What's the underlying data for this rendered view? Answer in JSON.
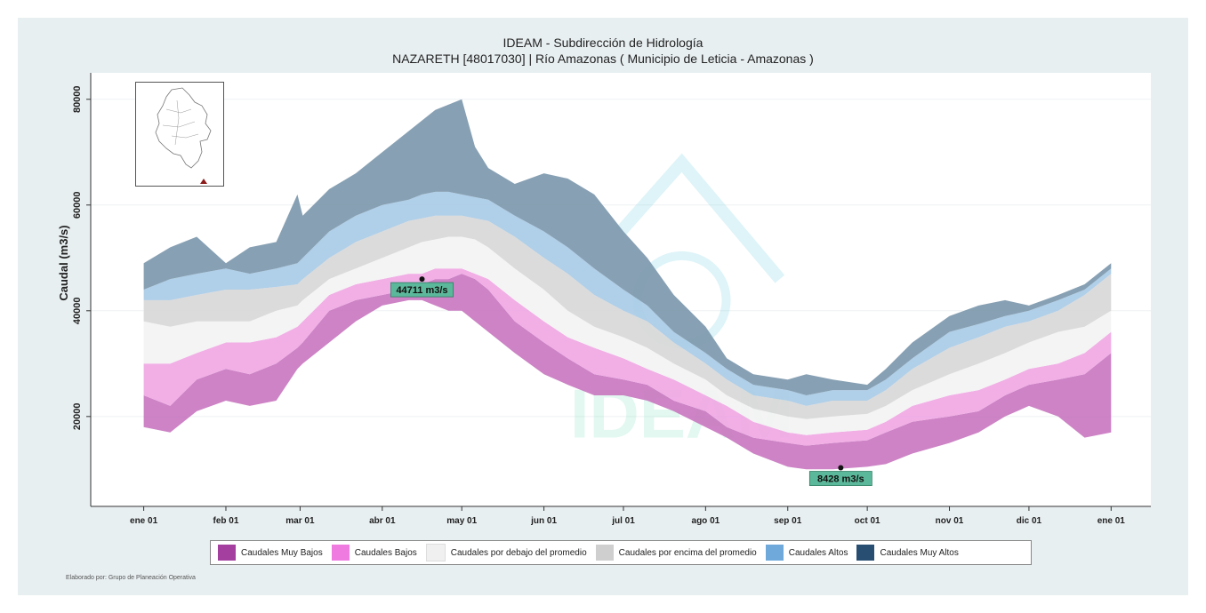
{
  "header": {
    "title": "IDEAM - Subdirección de Hidrología",
    "subtitle": "NAZARETH [48017030]  | Río Amazonas ( Municipio de Leticia - Amazonas )"
  },
  "credit": "Elaborado por: Grupo de Planeación Operativa",
  "watermark": "IDEAM",
  "chart_data": {
    "type": "area",
    "ylabel": "Caudal (m3/s)",
    "xlabel": "",
    "ylim": [
      3000,
      85000
    ],
    "xlim": [
      -20,
      380
    ],
    "y_ticks": [
      20000,
      40000,
      60000,
      80000
    ],
    "x_ticks": [
      {
        "label": "ene 01",
        "day": 0
      },
      {
        "label": "feb 01",
        "day": 31
      },
      {
        "label": "mar 01",
        "day": 59
      },
      {
        "label": "abr 01",
        "day": 90
      },
      {
        "label": "may 01",
        "day": 120
      },
      {
        "label": "jun 01",
        "day": 151
      },
      {
        "label": "jul 01",
        "day": 181
      },
      {
        "label": "ago 01",
        "day": 212
      },
      {
        "label": "sep 01",
        "day": 243
      },
      {
        "label": "oct 01",
        "day": 273
      },
      {
        "label": "nov 01",
        "day": 304
      },
      {
        "label": "dic 01",
        "day": 334
      },
      {
        "label": "ene 01",
        "day": 365
      }
    ],
    "grid": true,
    "legend_position": "bottom",
    "x": [
      0,
      10,
      20,
      31,
      40,
      50,
      58,
      60,
      70,
      80,
      90,
      100,
      105,
      110,
      115,
      120,
      125,
      130,
      140,
      151,
      160,
      170,
      181,
      190,
      200,
      212,
      220,
      230,
      243,
      250,
      260,
      273,
      280,
      290,
      304,
      315,
      325,
      334,
      345,
      355,
      365
    ],
    "thresholds": [
      [
        18000,
        17000,
        21000,
        23000,
        22000,
        23000,
        29000,
        30000,
        34000,
        38000,
        41000,
        42000,
        42000,
        41000,
        40000,
        40000,
        38000,
        36000,
        32000,
        28000,
        26000,
        24000,
        24000,
        23000,
        21000,
        18000,
        16000,
        13000,
        10500,
        10000,
        10000,
        10500,
        11000,
        13000,
        15000,
        17000,
        20000,
        22000,
        20000,
        16000,
        17000
      ],
      [
        24000,
        22000,
        27000,
        29000,
        28000,
        30000,
        33000,
        34000,
        40000,
        42000,
        43000,
        44000,
        45000,
        46000,
        46000,
        47000,
        46000,
        44000,
        38000,
        34000,
        31000,
        28000,
        27000,
        26000,
        23000,
        21000,
        18000,
        16000,
        15000,
        14500,
        15000,
        15500,
        17000,
        19000,
        20000,
        21000,
        24000,
        26000,
        27000,
        28000,
        32000
      ],
      [
        30000,
        30000,
        32000,
        34000,
        34000,
        35000,
        37000,
        38000,
        43000,
        45000,
        46000,
        47000,
        47000,
        48000,
        48000,
        48000,
        47000,
        46000,
        42000,
        38000,
        35000,
        33000,
        31000,
        29000,
        27000,
        24000,
        22000,
        19000,
        17000,
        16500,
        17000,
        17500,
        19000,
        22000,
        24000,
        25000,
        27000,
        29000,
        30000,
        32000,
        36000
      ],
      [
        38000,
        37000,
        38000,
        38000,
        38000,
        40000,
        41000,
        42000,
        46000,
        48000,
        50000,
        52000,
        53000,
        53500,
        54000,
        54000,
        53500,
        52000,
        48000,
        44000,
        40000,
        37000,
        35000,
        33000,
        30000,
        27000,
        24000,
        21500,
        20000,
        19500,
        20000,
        20500,
        22000,
        25000,
        28000,
        30000,
        32000,
        34000,
        36000,
        37000,
        40000
      ],
      [
        42000,
        42000,
        43000,
        44000,
        44000,
        44500,
        45000,
        46000,
        50000,
        53000,
        55000,
        57000,
        57500,
        58000,
        58000,
        58000,
        57500,
        57000,
        54000,
        50000,
        47000,
        43000,
        40000,
        38000,
        34000,
        30000,
        27000,
        24000,
        23000,
        22000,
        23000,
        23000,
        25000,
        29000,
        33000,
        35000,
        37000,
        38000,
        40000,
        43000,
        47000
      ],
      [
        44000,
        46000,
        47000,
        48000,
        47000,
        48000,
        49000,
        50000,
        55000,
        58000,
        60000,
        61000,
        62000,
        62500,
        62500,
        62000,
        61500,
        61000,
        58000,
        55000,
        52000,
        48000,
        44000,
        41000,
        36000,
        32000,
        29000,
        26000,
        25000,
        24000,
        25000,
        25000,
        27000,
        31000,
        36000,
        37500,
        39000,
        40000,
        42000,
        44000,
        48000
      ],
      [
        49000,
        52000,
        54000,
        49000,
        52000,
        53000,
        62000,
        58000,
        63000,
        66000,
        70000,
        74000,
        76000,
        78000,
        79000,
        80000,
        71000,
        67000,
        64000,
        66000,
        65000,
        62000,
        55000,
        50000,
        43000,
        37000,
        31000,
        28000,
        27000,
        28000,
        27000,
        26000,
        29000,
        34000,
        39000,
        41000,
        42000,
        41000,
        43000,
        45000,
        49000
      ]
    ],
    "series": [
      {
        "name": "Caudales Muy Bajos",
        "color": "#c978c0",
        "from": 0,
        "to": 1
      },
      {
        "name": "Caudales Bajos",
        "color": "#f0a8e4",
        "from": 1,
        "to": 2
      },
      {
        "name": "Caudales por debajo del promedio",
        "color": "#f3f3f3",
        "from": 2,
        "to": 3
      },
      {
        "name": "Caudales por encima del promedio",
        "color": "#d8d8d8",
        "from": 3,
        "to": 4
      },
      {
        "name": "Caudales Altos",
        "color": "#a9cbe6",
        "from": 4,
        "to": 5
      },
      {
        "name": "Caudales Muy Altos",
        "color": "#7d98ac",
        "from": 5,
        "to": 6
      }
    ],
    "legend_colors": [
      "#a43fa0",
      "#ef7be0",
      "#f0f0f0",
      "#cfcfcf",
      "#6fa9db",
      "#284f72"
    ],
    "annotations": [
      {
        "day": 105,
        "value": 46000,
        "label": "44711 m3/s",
        "color": "#5cb89a"
      },
      {
        "day": 263,
        "value": 10300,
        "label": "8428 m3/s",
        "color": "#5cb89a"
      }
    ]
  }
}
